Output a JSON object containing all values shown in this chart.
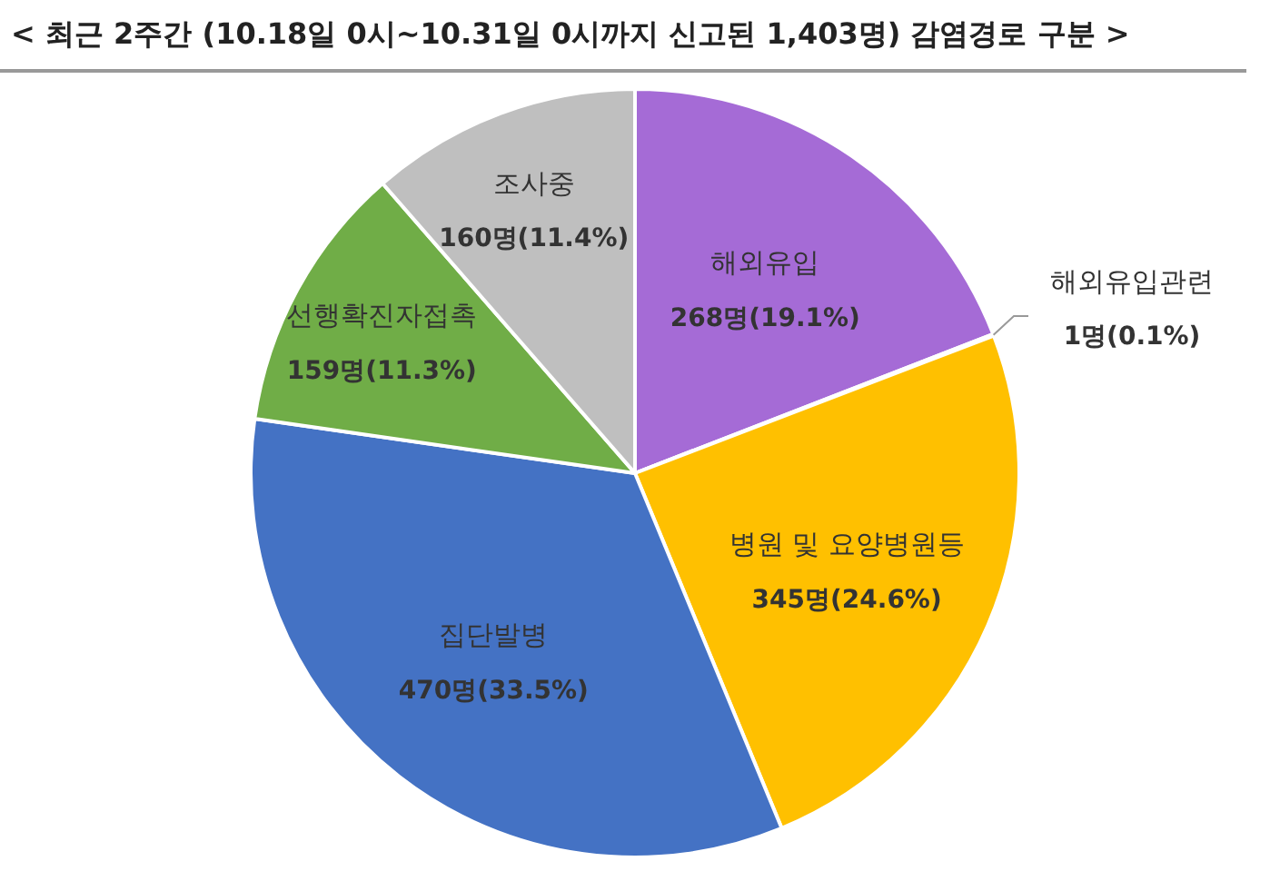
{
  "chart_data": {
    "type": "pie",
    "title": "< 최근 2주간 (10.18일 0시~10.31일 0시까지 신고된 1,403명)  감염경로 구분 >",
    "categories": [
      "해외유입",
      "해외유입관련",
      "병원 및 요양병원등",
      "집단발병",
      "선행확진자접촉",
      "조사중"
    ],
    "values": [
      268,
      1,
      345,
      470,
      159,
      160
    ],
    "colors": [
      "#a56bd6",
      "#5b9bd5",
      "#ffc000",
      "#4472c4",
      "#70ad47",
      "#bfbfbf"
    ],
    "value_labels": [
      "268명(19.1%)",
      "1명(0.1%)",
      "345명(24.6%)",
      "470명(33.5%)",
      "159명(11.3%)",
      "160명(11.4%)"
    ],
    "legend": false
  }
}
